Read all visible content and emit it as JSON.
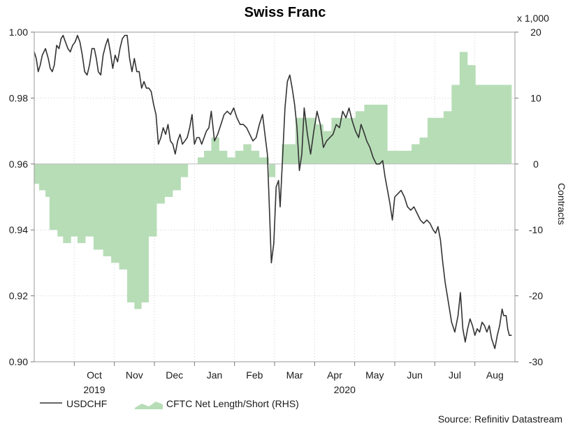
{
  "chart_data": {
    "type": "line",
    "title": "Swiss Franc",
    "xlabel": "",
    "ylabel_left": "",
    "ylabel_right": "Contracts",
    "right_unit": "x 1,000",
    "source": "Source: Refinitiv Datastream",
    "x_range": [
      0,
      12.0
    ],
    "month_ticks": [
      {
        "label": "Oct",
        "x": 1.0
      },
      {
        "label": "Nov",
        "x": 2.0
      },
      {
        "label": "Dec",
        "x": 3.0
      },
      {
        "label": "Jan",
        "x": 4.0
      },
      {
        "label": "Feb",
        "x": 5.0
      },
      {
        "label": "Mar",
        "x": 6.0
      },
      {
        "label": "Apr",
        "x": 7.0
      },
      {
        "label": "May",
        "x": 8.0
      },
      {
        "label": "Jun",
        "x": 9.0
      },
      {
        "label": "Jul",
        "x": 10.0
      },
      {
        "label": "Aug",
        "x": 11.0
      }
    ],
    "year_labels": [
      {
        "label": "2019",
        "x": 1.5
      },
      {
        "label": "2020",
        "x": 7.75
      }
    ],
    "left_axis": {
      "ylim": [
        0.9,
        1.0
      ],
      "ticks": [
        "0.90",
        "0.92",
        "0.94",
        "0.96",
        "0.98",
        "1.00"
      ]
    },
    "right_axis": {
      "ylim": [
        -30,
        20
      ],
      "ticks": [
        "-30",
        "-20",
        "-10",
        "0",
        "10",
        "20"
      ]
    },
    "series": [
      {
        "name": "USDCHF",
        "axis": "left",
        "color": "#333333",
        "points": [
          [
            0.0,
            0.994
          ],
          [
            0.05,
            0.992
          ],
          [
            0.1,
            0.988
          ],
          [
            0.15,
            0.99
          ],
          [
            0.2,
            0.993
          ],
          [
            0.28,
            0.995
          ],
          [
            0.35,
            0.992
          ],
          [
            0.4,
            0.989
          ],
          [
            0.45,
            0.988
          ],
          [
            0.5,
            0.99
          ],
          [
            0.56,
            0.996
          ],
          [
            0.62,
            0.995
          ],
          [
            0.67,
            0.998
          ],
          [
            0.72,
            0.999
          ],
          [
            0.78,
            0.997
          ],
          [
            0.84,
            0.995
          ],
          [
            0.9,
            0.994
          ],
          [
            0.96,
            0.996
          ],
          [
            1.02,
            0.997
          ],
          [
            1.08,
            0.999
          ],
          [
            1.14,
            0.997
          ],
          [
            1.2,
            0.993
          ],
          [
            1.26,
            0.988
          ],
          [
            1.32,
            0.987
          ],
          [
            1.38,
            0.99
          ],
          [
            1.44,
            0.995
          ],
          [
            1.5,
            0.995
          ],
          [
            1.55,
            0.992
          ],
          [
            1.6,
            0.988
          ],
          [
            1.66,
            0.987
          ],
          [
            1.72,
            0.993
          ],
          [
            1.78,
            0.996
          ],
          [
            1.84,
            0.998
          ],
          [
            1.9,
            0.994
          ],
          [
            1.96,
            0.989
          ],
          [
            2.02,
            0.993
          ],
          [
            2.08,
            0.991
          ],
          [
            2.14,
            0.995
          ],
          [
            2.2,
            0.998
          ],
          [
            2.26,
            0.999
          ],
          [
            2.32,
            0.999
          ],
          [
            2.38,
            0.992
          ],
          [
            2.44,
            0.988
          ],
          [
            2.5,
            0.992
          ],
          [
            2.56,
            0.988
          ],
          [
            2.62,
            0.988
          ],
          [
            2.68,
            0.983
          ],
          [
            2.74,
            0.985
          ],
          [
            2.8,
            0.983
          ],
          [
            2.86,
            0.983
          ],
          [
            2.92,
            0.982
          ],
          [
            2.98,
            0.978
          ],
          [
            3.04,
            0.975
          ],
          [
            3.1,
            0.966
          ],
          [
            3.16,
            0.968
          ],
          [
            3.22,
            0.971
          ],
          [
            3.28,
            0.969
          ],
          [
            3.34,
            0.972
          ],
          [
            3.4,
            0.967
          ],
          [
            3.46,
            0.966
          ],
          [
            3.52,
            0.963
          ],
          [
            3.58,
            0.967
          ],
          [
            3.64,
            0.969
          ],
          [
            3.7,
            0.966
          ],
          [
            3.76,
            0.967
          ],
          [
            3.82,
            0.968
          ],
          [
            3.88,
            0.971
          ],
          [
            3.94,
            0.975
          ],
          [
            4.0,
            0.966
          ],
          [
            4.06,
            0.968
          ],
          [
            4.12,
            0.968
          ],
          [
            4.18,
            0.966
          ],
          [
            4.24,
            0.968
          ],
          [
            4.3,
            0.97
          ],
          [
            4.36,
            0.971
          ],
          [
            4.42,
            0.976
          ],
          [
            4.5,
            0.967
          ],
          [
            4.58,
            0.969
          ],
          [
            4.66,
            0.972
          ],
          [
            4.74,
            0.975
          ],
          [
            4.82,
            0.976
          ],
          [
            4.9,
            0.975
          ],
          [
            4.98,
            0.977
          ],
          [
            5.06,
            0.974
          ],
          [
            5.14,
            0.972
          ],
          [
            5.22,
            0.972
          ],
          [
            5.3,
            0.971
          ],
          [
            5.38,
            0.969
          ],
          [
            5.46,
            0.967
          ],
          [
            5.54,
            0.968
          ],
          [
            5.62,
            0.972
          ],
          [
            5.7,
            0.975
          ],
          [
            5.76,
            0.969
          ],
          [
            5.82,
            0.963
          ],
          [
            5.86,
            0.95
          ],
          [
            5.92,
            0.93
          ],
          [
            5.98,
            0.936
          ],
          [
            6.04,
            0.953
          ],
          [
            6.1,
            0.955
          ],
          [
            6.14,
            0.947
          ],
          [
            6.2,
            0.962
          ],
          [
            6.26,
            0.977
          ],
          [
            6.32,
            0.985
          ],
          [
            6.38,
            0.987
          ],
          [
            6.44,
            0.983
          ],
          [
            6.5,
            0.978
          ],
          [
            6.56,
            0.971
          ],
          [
            6.62,
            0.958
          ],
          [
            6.68,
            0.963
          ],
          [
            6.74,
            0.977
          ],
          [
            6.82,
            0.969
          ],
          [
            6.9,
            0.963
          ],
          [
            6.98,
            0.97
          ],
          [
            7.06,
            0.976
          ],
          [
            7.14,
            0.972
          ],
          [
            7.22,
            0.965
          ],
          [
            7.3,
            0.967
          ],
          [
            7.38,
            0.968
          ],
          [
            7.46,
            0.969
          ],
          [
            7.54,
            0.972
          ],
          [
            7.62,
            0.971
          ],
          [
            7.7,
            0.976
          ],
          [
            7.78,
            0.974
          ],
          [
            7.86,
            0.977
          ],
          [
            7.94,
            0.973
          ],
          [
            8.02,
            0.97
          ],
          [
            8.1,
            0.968
          ],
          [
            8.16,
            0.972
          ],
          [
            8.22,
            0.97
          ],
          [
            8.3,
            0.967
          ],
          [
            8.38,
            0.965
          ],
          [
            8.46,
            0.962
          ],
          [
            8.54,
            0.96
          ],
          [
            8.62,
            0.96
          ],
          [
            8.7,
            0.961
          ],
          [
            8.76,
            0.956
          ],
          [
            8.82,
            0.952
          ],
          [
            8.88,
            0.948
          ],
          [
            8.94,
            0.943
          ],
          [
            9.0,
            0.95
          ],
          [
            9.08,
            0.951
          ],
          [
            9.16,
            0.952
          ],
          [
            9.24,
            0.95
          ],
          [
            9.32,
            0.947
          ],
          [
            9.4,
            0.946
          ],
          [
            9.48,
            0.947
          ],
          [
            9.56,
            0.945
          ],
          [
            9.64,
            0.943
          ],
          [
            9.72,
            0.942
          ],
          [
            9.8,
            0.943
          ],
          [
            9.88,
            0.942
          ],
          [
            9.96,
            0.94
          ],
          [
            10.02,
            0.939
          ],
          [
            10.08,
            0.941
          ],
          [
            10.14,
            0.937
          ],
          [
            10.2,
            0.93
          ],
          [
            10.26,
            0.924
          ],
          [
            10.34,
            0.918
          ],
          [
            10.42,
            0.912
          ],
          [
            10.5,
            0.909
          ],
          [
            10.58,
            0.914
          ],
          [
            10.64,
            0.921
          ],
          [
            10.7,
            0.91
          ],
          [
            10.76,
            0.906
          ],
          [
            10.82,
            0.91
          ],
          [
            10.88,
            0.913
          ],
          [
            10.94,
            0.911
          ],
          [
            11.0,
            0.908
          ],
          [
            11.06,
            0.91
          ],
          [
            11.12,
            0.909
          ],
          [
            11.18,
            0.912
          ],
          [
            11.24,
            0.911
          ],
          [
            11.3,
            0.909
          ],
          [
            11.36,
            0.911
          ],
          [
            11.42,
            0.907
          ],
          [
            11.5,
            0.904
          ],
          [
            11.56,
            0.908
          ],
          [
            11.62,
            0.911
          ],
          [
            11.68,
            0.916
          ],
          [
            11.72,
            0.914
          ],
          [
            11.78,
            0.914
          ],
          [
            11.82,
            0.91
          ],
          [
            11.86,
            0.908
          ],
          [
            11.92,
            0.908
          ]
        ]
      },
      {
        "name": "CFTC Net Length/Short (RHS)",
        "axis": "right",
        "color": "#b7ddb7",
        "steps": [
          [
            0.0,
            -3
          ],
          [
            0.12,
            -4
          ],
          [
            0.28,
            -5
          ],
          [
            0.38,
            -10
          ],
          [
            0.58,
            -11
          ],
          [
            0.72,
            -12
          ],
          [
            0.92,
            -11
          ],
          [
            1.08,
            -12
          ],
          [
            1.28,
            -11
          ],
          [
            1.48,
            -13
          ],
          [
            1.72,
            -14
          ],
          [
            1.92,
            -15
          ],
          [
            2.12,
            -16
          ],
          [
            2.32,
            -21
          ],
          [
            2.5,
            -22
          ],
          [
            2.68,
            -21
          ],
          [
            2.86,
            -11
          ],
          [
            3.06,
            -6
          ],
          [
            3.26,
            -5
          ],
          [
            3.46,
            -4
          ],
          [
            3.66,
            -2
          ],
          [
            3.84,
            0
          ],
          [
            4.08,
            1
          ],
          [
            4.24,
            2
          ],
          [
            4.42,
            4
          ],
          [
            4.62,
            2
          ],
          [
            4.82,
            1
          ],
          [
            5.02,
            2
          ],
          [
            5.22,
            3
          ],
          [
            5.42,
            2
          ],
          [
            5.62,
            1
          ],
          [
            5.86,
            -2
          ],
          [
            6.02,
            0
          ],
          [
            6.18,
            3
          ],
          [
            6.36,
            3
          ],
          [
            6.52,
            7
          ],
          [
            6.72,
            7
          ],
          [
            6.88,
            7
          ],
          [
            7.04,
            6
          ],
          [
            7.22,
            5
          ],
          [
            7.42,
            7
          ],
          [
            7.62,
            7
          ],
          [
            7.82,
            7
          ],
          [
            8.02,
            8
          ],
          [
            8.24,
            9
          ],
          [
            8.44,
            9
          ],
          [
            8.62,
            9
          ],
          [
            8.82,
            2
          ],
          [
            9.02,
            2
          ],
          [
            9.22,
            2
          ],
          [
            9.42,
            3
          ],
          [
            9.62,
            4
          ],
          [
            9.82,
            7
          ],
          [
            10.02,
            7
          ],
          [
            10.22,
            8
          ],
          [
            10.42,
            12
          ],
          [
            10.62,
            17
          ],
          [
            10.82,
            15
          ],
          [
            11.02,
            12
          ],
          [
            11.22,
            12
          ],
          [
            11.42,
            12
          ],
          [
            11.62,
            12
          ]
        ]
      }
    ],
    "legend": {
      "placement": "bottom-left",
      "entries": [
        "USDCHF",
        "CFTC Net Length/Short (RHS)"
      ]
    }
  }
}
